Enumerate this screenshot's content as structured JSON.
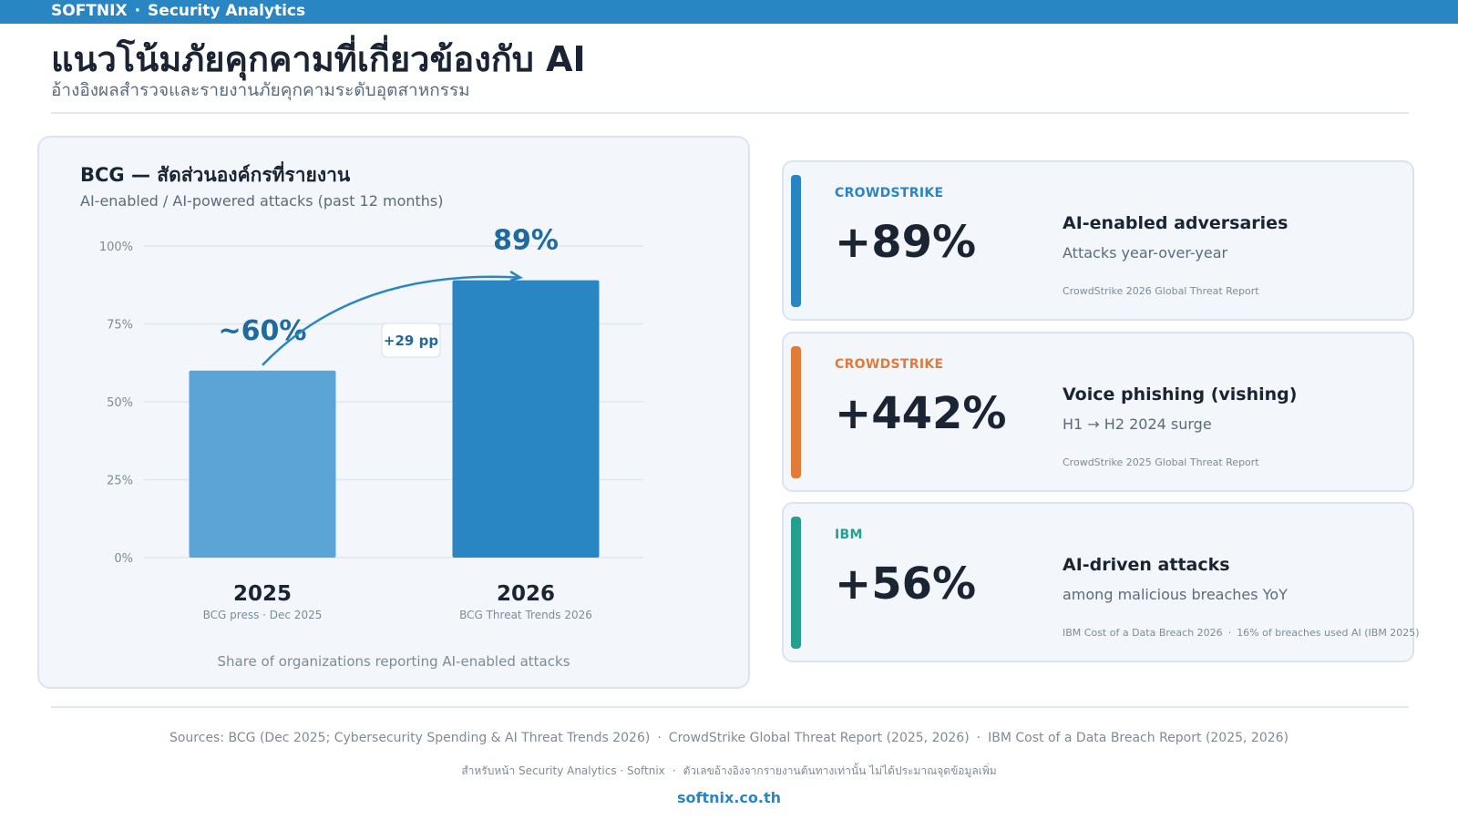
{
  "header": {
    "brand": "SOFTNIX",
    "separator": "·",
    "section": "Security Analytics"
  },
  "page": {
    "title": "แนวโน้มภัยคุกคามที่เกี่ยวข้องกับ AI",
    "subtitle": "อ้างอิงผลสำรวจและรายงานภัยคุกคามระดับอุตสาหกรรม"
  },
  "colors": {
    "brand_blue": "#2a86c3",
    "bar_2025": "#5ba5d6",
    "bar_2026": "#2a86c3",
    "value_label": "#1f6a9e",
    "crowdstrike_blue": "#2a86c3",
    "crowdstrike_orange": "#e07b39",
    "ibm_teal": "#26a08e"
  },
  "chart_data": {
    "type": "bar",
    "title": "BCG — สัดส่วนองค์กรที่รายงาน",
    "subtitle": "AI-enabled / AI-powered attacks (past 12 months)",
    "categories": [
      "2025",
      "2026"
    ],
    "category_sources": [
      "BCG press · Dec 2025",
      "BCG Threat Trends 2026"
    ],
    "values": [
      60,
      89
    ],
    "value_labels": [
      "~60%",
      "89%"
    ],
    "y_ticks": [
      "0%",
      "25%",
      "50%",
      "75%",
      "100%"
    ],
    "ylim": [
      0,
      100
    ],
    "grid": true,
    "annotation": "+29 pp",
    "footer": "Share of organizations reporting AI-enabled attacks"
  },
  "cards": [
    {
      "source": "CROWDSTRIKE",
      "accent": "#2a86c3",
      "value": "+89%",
      "headline": "AI-enabled adversaries",
      "description": "Attacks year-over-year",
      "reference": "CrowdStrike 2026 Global Threat Report",
      "reference_extra": ""
    },
    {
      "source": "CROWDSTRIKE",
      "accent": "#e07b39",
      "value": "+442%",
      "headline": "Voice phishing (vishing)",
      "description": "H1 → H2 2024 surge",
      "reference": "CrowdStrike 2025 Global Threat Report",
      "reference_extra": ""
    },
    {
      "source": "IBM",
      "accent": "#26a08e",
      "value": "+56%",
      "headline": "AI-driven attacks",
      "description": "among malicious breaches YoY",
      "reference": "IBM Cost of a Data Breach 2026",
      "reference_extra": "16% of breaches used AI (IBM 2025)"
    }
  ],
  "footer": {
    "sources": [
      "Sources: BCG (Dec 2025; Cybersecurity Spending & AI Threat Trends 2026)",
      "CrowdStrike Global Threat Report (2025, 2026)",
      "IBM Cost of a Data Breach Report (2025, 2026)"
    ],
    "note_left": "สำหรับหน้า Security Analytics · Softnix",
    "note_right": "ตัวเลขอ้างอิงจากรายงานต้นทางเท่านั้น ไม่ได้ประมาณจุดข้อมูลเพิ่ม",
    "site": "softnix.co.th",
    "separator": "·"
  }
}
